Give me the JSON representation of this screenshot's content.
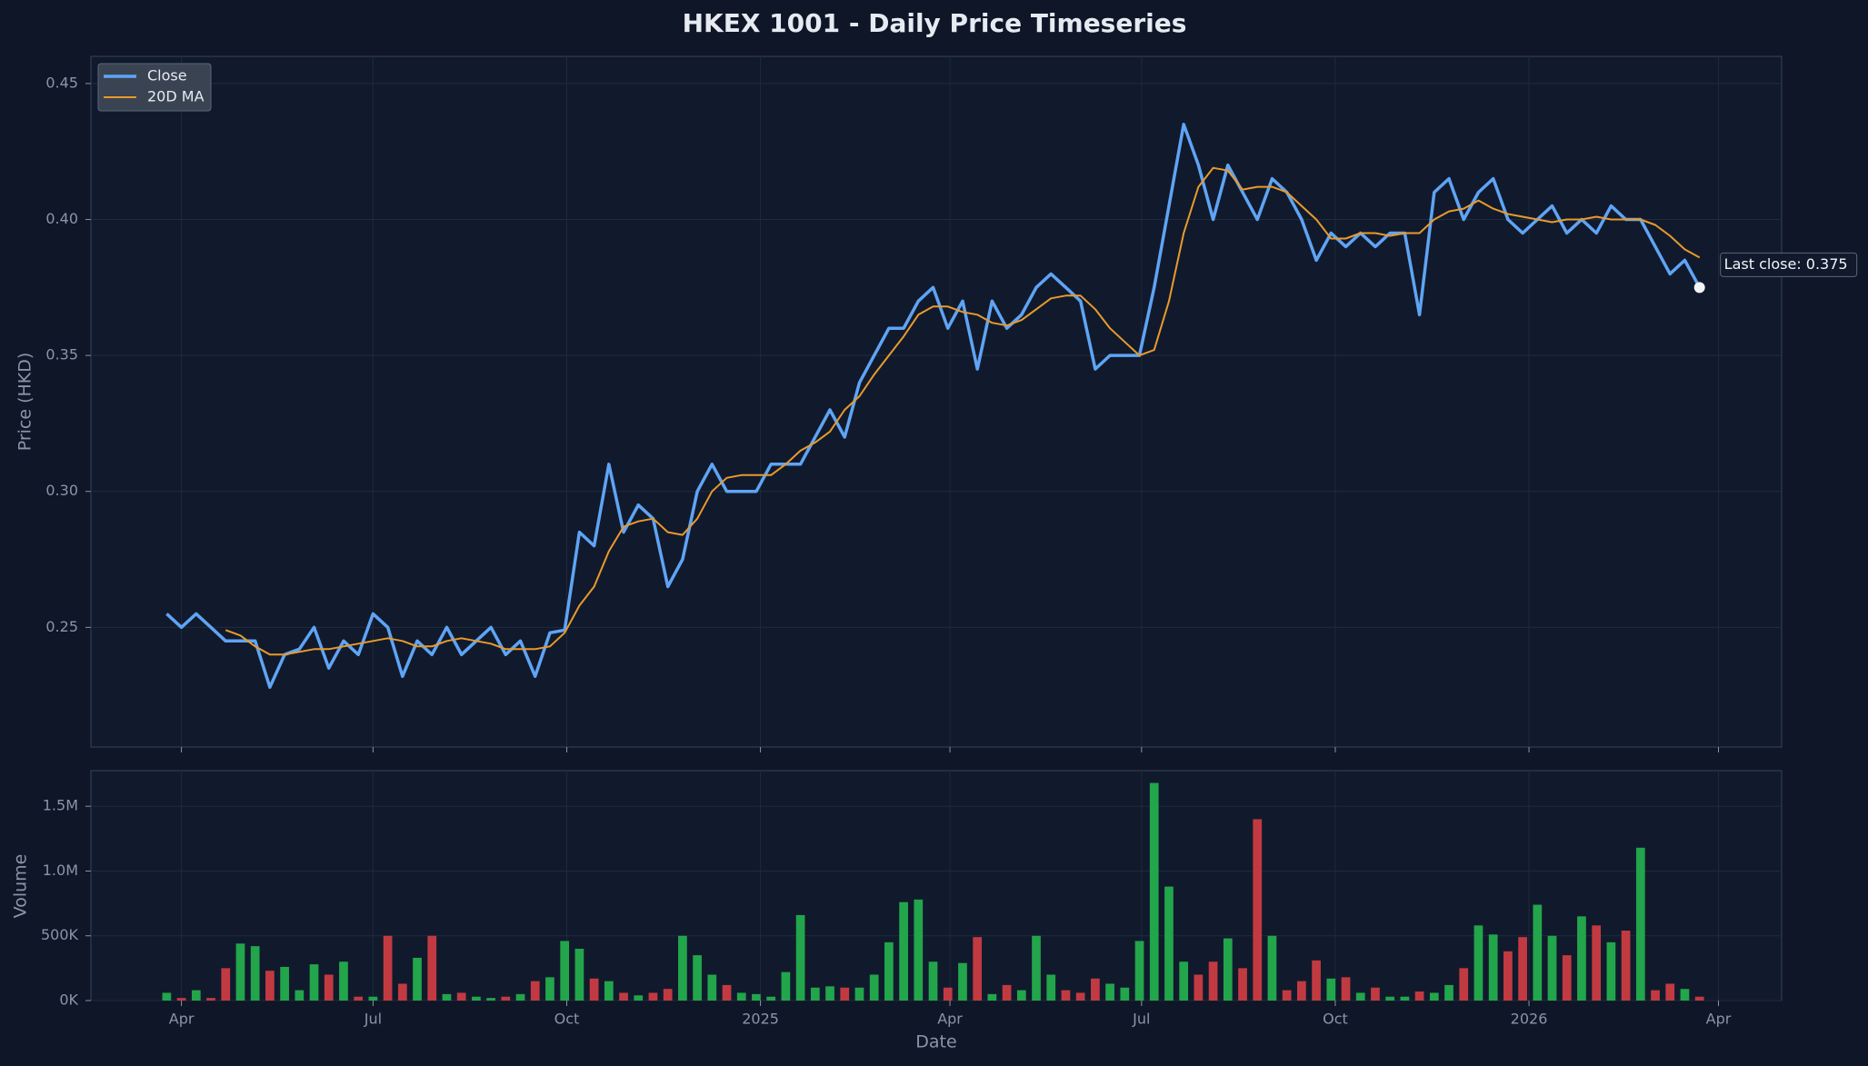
{
  "chart_data": [
    {
      "type": "line",
      "title": "HKEX 1001 - Daily Price Timeseries",
      "y_label": "Price (HKD)",
      "annotation": "Last close: 0.375",
      "legend": "upper left",
      "grid": true,
      "xlim": [
        "2024-02-18",
        "2026-05-01"
      ],
      "ylim": [
        0.206,
        0.46
      ],
      "yticks": [
        0.25,
        {
          "value": 0.3,
          "label": "0.30"
        },
        0.35,
        {
          "value": 0.4,
          "label": "0.40"
        },
        0.45
      ],
      "x": [
        "2024-03-25",
        "2024-04-01",
        "2024-04-08",
        "2024-04-15",
        "2024-04-22",
        "2024-04-29",
        "2024-05-06",
        "2024-05-13",
        "2024-05-20",
        "2024-05-27",
        "2024-06-03",
        "2024-06-10",
        "2024-06-17",
        "2024-06-24",
        "2024-07-01",
        "2024-07-08",
        "2024-07-15",
        "2024-07-22",
        "2024-07-29",
        "2024-08-05",
        "2024-08-12",
        "2024-08-19",
        "2024-08-26",
        "2024-09-02",
        "2024-09-09",
        "2024-09-16",
        "2024-09-23",
        "2024-09-30",
        "2024-10-07",
        "2024-10-14",
        "2024-10-21",
        "2024-10-28",
        "2024-11-04",
        "2024-11-11",
        "2024-11-18",
        "2024-11-25",
        "2024-12-02",
        "2024-12-09",
        "2024-12-16",
        "2024-12-23",
        "2024-12-30",
        "2025-01-06",
        "2025-01-13",
        "2025-01-20",
        "2025-01-27",
        "2025-02-03",
        "2025-02-10",
        "2025-02-17",
        "2025-02-24",
        "2025-03-03",
        "2025-03-10",
        "2025-03-17",
        "2025-03-24",
        "2025-03-31",
        "2025-04-07",
        "2025-04-14",
        "2025-04-21",
        "2025-04-28",
        "2025-05-05",
        "2025-05-12",
        "2025-05-19",
        "2025-05-26",
        "2025-06-02",
        "2025-06-09",
        "2025-06-16",
        "2025-06-23",
        "2025-06-30",
        "2025-07-07",
        "2025-07-14",
        "2025-07-21",
        "2025-07-28",
        "2025-08-04",
        "2025-08-11",
        "2025-08-18",
        "2025-08-25",
        "2025-09-01",
        "2025-09-08",
        "2025-09-15",
        "2025-09-22",
        "2025-09-29",
        "2025-10-06",
        "2025-10-13",
        "2025-10-20",
        "2025-10-27",
        "2025-11-03",
        "2025-11-10",
        "2025-11-17",
        "2025-11-24",
        "2025-12-01",
        "2025-12-08",
        "2025-12-15",
        "2025-12-22",
        "2025-12-29",
        "2026-01-05",
        "2026-01-12",
        "2026-01-19",
        "2026-01-26",
        "2026-02-02",
        "2026-02-09",
        "2026-02-16",
        "2026-02-23",
        "2026-03-02",
        "2026-03-09",
        "2026-03-16",
        "2026-03-23"
      ],
      "series": [
        {
          "name": "Close",
          "color": "#5fa4f5",
          "values": [
            0.255,
            0.25,
            0.255,
            0.25,
            0.245,
            0.245,
            0.245,
            0.228,
            0.24,
            0.242,
            0.25,
            0.235,
            0.245,
            0.24,
            0.255,
            0.25,
            0.232,
            0.245,
            0.24,
            0.25,
            0.24,
            0.245,
            0.25,
            0.24,
            0.245,
            0.232,
            0.248,
            0.249,
            0.285,
            0.28,
            0.31,
            0.285,
            0.295,
            0.29,
            0.265,
            0.275,
            0.3,
            0.31,
            0.3,
            0.3,
            0.3,
            0.31,
            0.31,
            0.31,
            0.32,
            0.33,
            0.32,
            0.34,
            0.35,
            0.36,
            0.36,
            0.37,
            0.375,
            0.36,
            0.37,
            0.345,
            0.37,
            0.36,
            0.365,
            0.375,
            0.38,
            0.375,
            0.37,
            0.345,
            0.35,
            0.35,
            0.35,
            0.375,
            0.405,
            0.435,
            0.42,
            0.4,
            0.42,
            0.41,
            0.4,
            0.415,
            0.41,
            0.4,
            0.385,
            0.395,
            0.39,
            0.395,
            0.39,
            0.395,
            0.395,
            0.365,
            0.41,
            0.415,
            0.4,
            0.41,
            0.415,
            0.4,
            0.395,
            0.4,
            0.405,
            0.395,
            0.4,
            0.395,
            0.405,
            0.4,
            0.4,
            0.39,
            0.38,
            0.385,
            0.375
          ]
        },
        {
          "name": "20D MA",
          "color": "#e89a2c",
          "values": [
            null,
            null,
            null,
            null,
            0.249,
            0.247,
            0.243,
            0.24,
            0.24,
            0.241,
            0.242,
            0.242,
            0.243,
            0.244,
            0.245,
            0.246,
            0.245,
            0.243,
            0.243,
            0.245,
            0.246,
            0.245,
            0.244,
            0.242,
            0.242,
            0.242,
            0.243,
            0.248,
            0.258,
            0.265,
            0.278,
            0.287,
            0.289,
            0.29,
            0.285,
            0.284,
            0.29,
            0.3,
            0.305,
            0.306,
            0.306,
            0.306,
            0.31,
            0.315,
            0.318,
            0.322,
            0.33,
            0.335,
            0.343,
            0.35,
            0.357,
            0.365,
            0.368,
            0.368,
            0.366,
            0.365,
            0.362,
            0.361,
            0.363,
            0.367,
            0.371,
            0.372,
            0.372,
            0.367,
            0.36,
            0.355,
            0.35,
            0.352,
            0.37,
            0.395,
            0.412,
            0.419,
            0.418,
            0.411,
            0.412,
            0.412,
            0.41,
            0.405,
            0.4,
            0.393,
            0.393,
            0.395,
            0.395,
            0.394,
            0.395,
            0.395,
            0.4,
            0.403,
            0.404,
            0.407,
            0.404,
            0.402,
            0.401,
            0.4,
            0.399,
            0.4,
            0.4,
            0.401,
            0.4,
            0.4,
            0.4,
            0.398,
            0.394,
            0.389,
            0.386
          ]
        }
      ]
    },
    {
      "type": "bar",
      "x_label": "Date",
      "y_label": "Volume",
      "grid": true,
      "up_color": "#22a54b",
      "down_color": "#c23a41",
      "xlim": [
        "2024-02-18",
        "2026-05-01"
      ],
      "ylim": [
        0,
        1775000
      ],
      "xticks": [
        {
          "value": "2024-04-01",
          "label": "Apr"
        },
        {
          "value": "2024-07-01",
          "label": "Jul"
        },
        {
          "value": "2024-10-01",
          "label": "Oct"
        },
        {
          "value": "2025-01-01",
          "label": "2025"
        },
        {
          "value": "2025-04-01",
          "label": "Apr"
        },
        {
          "value": "2025-07-01",
          "label": "Jul"
        },
        {
          "value": "2025-10-01",
          "label": "Oct"
        },
        {
          "value": "2026-01-01",
          "label": "2026"
        },
        {
          "value": "2026-04-01",
          "label": "Apr"
        }
      ],
      "yticks": [
        {
          "value": 0,
          "label": "0K"
        },
        {
          "value": 500000,
          "label": "500K"
        },
        {
          "value": 1000000,
          "label": "1.0M"
        },
        {
          "value": 1500000,
          "label": "1.5M"
        }
      ],
      "x": [
        "2024-03-25",
        "2024-04-01",
        "2024-04-08",
        "2024-04-15",
        "2024-04-22",
        "2024-04-29",
        "2024-05-06",
        "2024-05-13",
        "2024-05-20",
        "2024-05-27",
        "2024-06-03",
        "2024-06-10",
        "2024-06-17",
        "2024-06-24",
        "2024-07-01",
        "2024-07-08",
        "2024-07-15",
        "2024-07-22",
        "2024-07-29",
        "2024-08-05",
        "2024-08-12",
        "2024-08-19",
        "2024-08-26",
        "2024-09-02",
        "2024-09-09",
        "2024-09-16",
        "2024-09-23",
        "2024-09-30",
        "2024-10-07",
        "2024-10-14",
        "2024-10-21",
        "2024-10-28",
        "2024-11-04",
        "2024-11-11",
        "2024-11-18",
        "2024-11-25",
        "2024-12-02",
        "2024-12-09",
        "2024-12-16",
        "2024-12-23",
        "2024-12-30",
        "2025-01-06",
        "2025-01-13",
        "2025-01-20",
        "2025-01-27",
        "2025-02-03",
        "2025-02-10",
        "2025-02-17",
        "2025-02-24",
        "2025-03-03",
        "2025-03-10",
        "2025-03-17",
        "2025-03-24",
        "2025-03-31",
        "2025-04-07",
        "2025-04-14",
        "2025-04-21",
        "2025-04-28",
        "2025-05-05",
        "2025-05-12",
        "2025-05-19",
        "2025-05-26",
        "2025-06-02",
        "2025-06-09",
        "2025-06-16",
        "2025-06-23",
        "2025-06-30",
        "2025-07-07",
        "2025-07-14",
        "2025-07-21",
        "2025-07-28",
        "2025-08-04",
        "2025-08-11",
        "2025-08-18",
        "2025-08-25",
        "2025-09-01",
        "2025-09-08",
        "2025-09-15",
        "2025-09-22",
        "2025-09-29",
        "2025-10-06",
        "2025-10-13",
        "2025-10-20",
        "2025-10-27",
        "2025-11-03",
        "2025-11-10",
        "2025-11-17",
        "2025-11-24",
        "2025-12-01",
        "2025-12-08",
        "2025-12-15",
        "2025-12-22",
        "2025-12-29",
        "2026-01-05",
        "2026-01-12",
        "2026-01-19",
        "2026-01-26",
        "2026-02-02",
        "2026-02-09",
        "2026-02-16",
        "2026-02-23",
        "2026-03-02",
        "2026-03-09",
        "2026-03-16",
        "2026-03-23"
      ],
      "values": [
        60000,
        20000,
        80000,
        20000,
        250000,
        440000,
        420000,
        230000,
        260000,
        80000,
        280000,
        200000,
        300000,
        30000,
        30000,
        500000,
        130000,
        330000,
        500000,
        50000,
        60000,
        30000,
        20000,
        30000,
        50000,
        150000,
        180000,
        460000,
        400000,
        170000,
        150000,
        60000,
        40000,
        60000,
        90000,
        500000,
        350000,
        200000,
        120000,
        60000,
        50000,
        30000,
        220000,
        660000,
        100000,
        110000,
        100000,
        100000,
        200000,
        450000,
        760000,
        780000,
        300000,
        100000,
        290000,
        490000,
        50000,
        120000,
        80000,
        500000,
        200000,
        80000,
        60000,
        170000,
        130000,
        100000,
        460000,
        1680000,
        880000,
        300000,
        200000,
        300000,
        480000,
        250000,
        1400000,
        500000,
        80000,
        150000,
        310000,
        170000,
        180000,
        60000,
        100000,
        30000,
        30000,
        70000,
        60000,
        120000,
        250000,
        580000,
        510000,
        380000,
        490000,
        740000,
        500000,
        350000,
        650000,
        580000,
        450000,
        540000,
        1180000,
        80000,
        130000,
        90000,
        30000
      ]
    }
  ]
}
